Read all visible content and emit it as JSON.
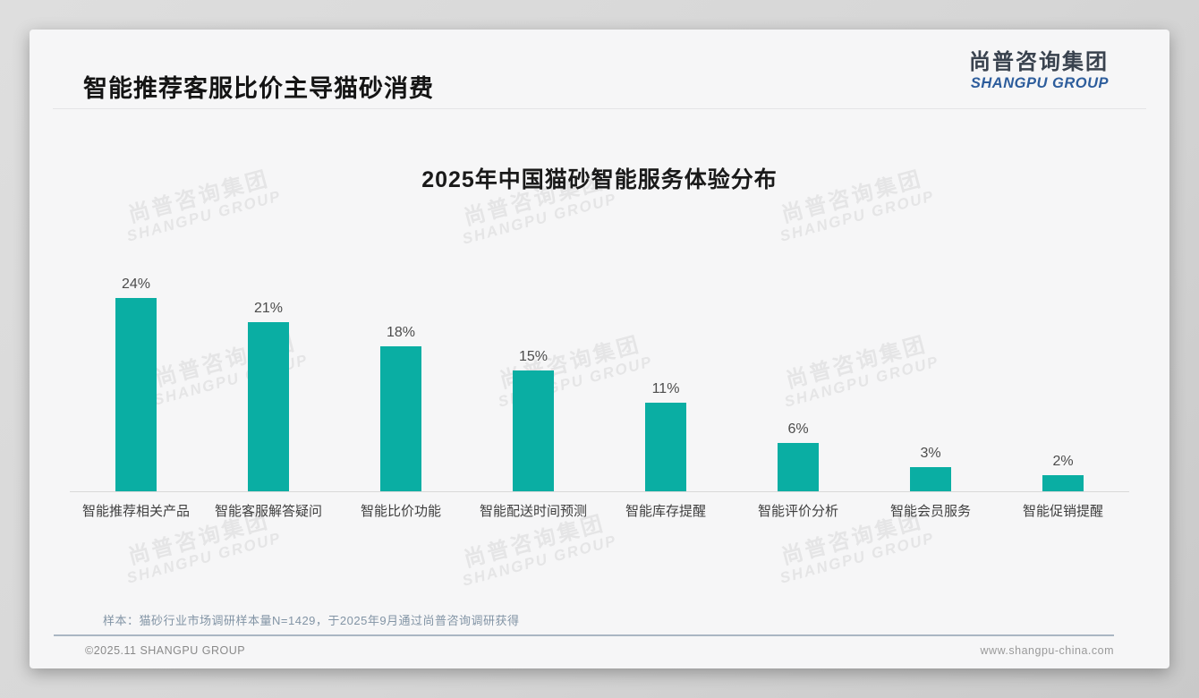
{
  "header": {
    "title": "智能推荐客服比价主导猫砂消费"
  },
  "logo": {
    "cn": "尚普咨询集团",
    "en": "SHANGPU GROUP"
  },
  "watermark": {
    "cn": "尚普咨询集团",
    "en": "SHANGPU GROUP"
  },
  "colors": {
    "bar_teal": "#0aaea3",
    "logo_blue": "#2d5d9c",
    "footnote_gray_blue": "#8294a5"
  },
  "chart_data": {
    "type": "bar",
    "title": "2025年中国猫砂智能服务体验分布",
    "categories": [
      "智能推荐相关产品",
      "智能客服解答疑问",
      "智能比价功能",
      "智能配送时间预测",
      "智能库存提醒",
      "智能评价分析",
      "智能会员服务",
      "智能促销提醒"
    ],
    "values": [
      24,
      21,
      18,
      15,
      11,
      6,
      3,
      2
    ],
    "data_labels": [
      "24%",
      "21%",
      "18%",
      "15%",
      "11%",
      "6%",
      "3%",
      "2%"
    ],
    "unit": "%",
    "ylim": [
      0,
      26
    ],
    "grid": false,
    "legend": false,
    "bar_color": "#0aaea3",
    "xlabel": "",
    "ylabel": ""
  },
  "footer": {
    "note": "样本：猫砂行业市场调研样本量N=1429，于2025年9月通过尚普咨询调研获得",
    "copyright": "©2025.11 SHANGPU GROUP",
    "website": "www.shangpu-china.com"
  }
}
